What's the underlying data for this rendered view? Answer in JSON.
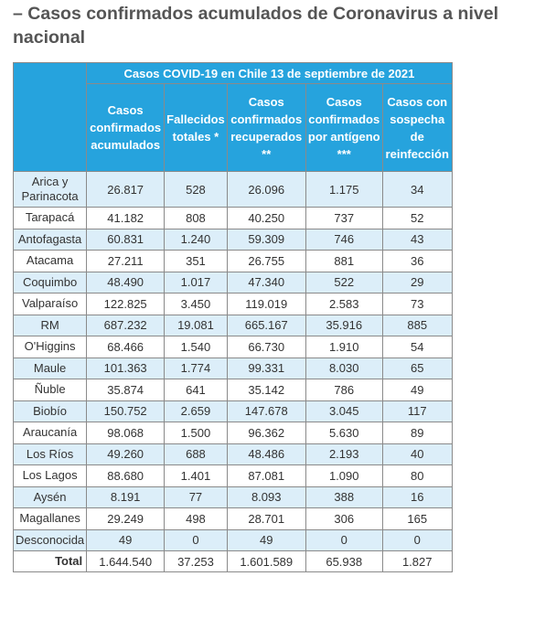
{
  "heading": "– Casos confirmados acumulados de Coronavirus a nivel nacional",
  "table": {
    "title": "Casos COVID-19 en Chile 13 de septiembre de 2021",
    "columns": [
      "Casos confirmados acumulados",
      "Fallecidos totales *",
      "Casos confirmados recuperados **",
      "Casos confirmados por antígeno ***",
      "Casos con sospecha de reinfección"
    ],
    "rows": [
      [
        "Arica y Parinacota",
        "26.817",
        "528",
        "26.096",
        "1.175",
        "34"
      ],
      [
        "Tarapacá",
        "41.182",
        "808",
        "40.250",
        "737",
        "52"
      ],
      [
        "Antofagasta",
        "60.831",
        "1.240",
        "59.309",
        "746",
        "43"
      ],
      [
        "Atacama",
        "27.211",
        "351",
        "26.755",
        "881",
        "36"
      ],
      [
        "Coquimbo",
        "48.490",
        "1.017",
        "47.340",
        "522",
        "29"
      ],
      [
        "Valparaíso",
        "122.825",
        "3.450",
        "119.019",
        "2.583",
        "73"
      ],
      [
        "RM",
        "687.232",
        "19.081",
        "665.167",
        "35.916",
        "885"
      ],
      [
        "O'Higgins",
        "68.466",
        "1.540",
        "66.730",
        "1.910",
        "54"
      ],
      [
        "Maule",
        "101.363",
        "1.774",
        "99.331",
        "8.030",
        "65"
      ],
      [
        "Ñuble",
        "35.874",
        "641",
        "35.142",
        "786",
        "49"
      ],
      [
        "Biobío",
        "150.752",
        "2.659",
        "147.678",
        "3.045",
        "117"
      ],
      [
        "Araucanía",
        "98.068",
        "1.500",
        "96.362",
        "5.630",
        "89"
      ],
      [
        "Los Ríos",
        "49.260",
        "688",
        "48.486",
        "2.193",
        "40"
      ],
      [
        "Los Lagos",
        "88.680",
        "1.401",
        "87.081",
        "1.090",
        "80"
      ],
      [
        "Aysén",
        "8.191",
        "77",
        "8.093",
        "388",
        "16"
      ],
      [
        "Magallanes",
        "29.249",
        "498",
        "28.701",
        "306",
        "165"
      ],
      [
        "Desconocida",
        "49",
        "0",
        "49",
        "0",
        "0"
      ]
    ],
    "total": [
      "Total",
      "1.644.540",
      "37.253",
      "1.601.589",
      "65.938",
      "1.827"
    ]
  }
}
